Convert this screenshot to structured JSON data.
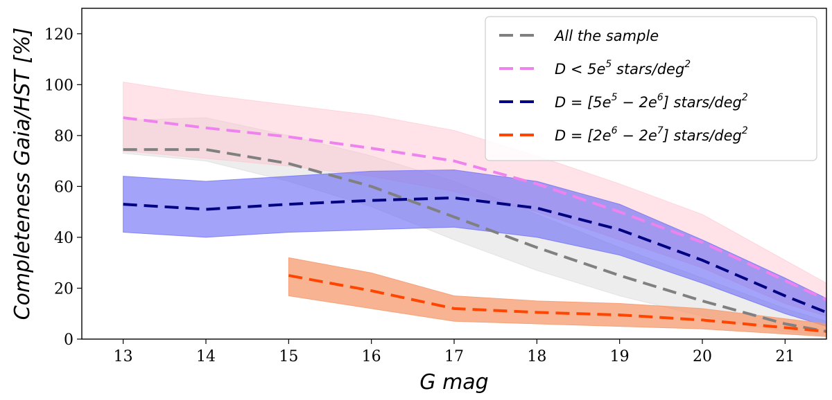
{
  "chart_data": {
    "type": "line",
    "title": "",
    "xlabel": "G mag",
    "ylabel": "Completeness Gaia/HST [%]",
    "xlim": [
      12.5,
      21.5
    ],
    "ylim": [
      0,
      130
    ],
    "xticks": [
      13,
      14,
      15,
      16,
      17,
      18,
      19,
      20,
      21
    ],
    "xtick_labels": [
      "13",
      "14",
      "15",
      "16",
      "17",
      "18",
      "19",
      "20",
      "21"
    ],
    "yticks": [
      0,
      20,
      40,
      60,
      80,
      100,
      120
    ],
    "ytick_labels": [
      "0",
      "20",
      "40",
      "60",
      "80",
      "100",
      "120"
    ],
    "legend_position": "top-right",
    "series": [
      {
        "name": "All the sample",
        "legend_parts": [
          {
            "text": "All the sample"
          }
        ],
        "color": "#808080",
        "band_color": "#d3d3d3",
        "band_opacity": 0.4,
        "x": [
          13,
          14,
          15,
          16,
          17,
          18,
          19,
          20,
          21,
          21.5
        ],
        "values": [
          74.5,
          74.5,
          69,
          60,
          48,
          36,
          25,
          15,
          6,
          3
        ],
        "lower": [
          73,
          70,
          62,
          52,
          39,
          27,
          17,
          9,
          3,
          1.5
        ],
        "upper": [
          86,
          87,
          80,
          72,
          62,
          49,
          36,
          24,
          12,
          7
        ]
      },
      {
        "name": "D < 5e5 stars/deg2",
        "legend_parts": [
          {
            "text": "D < 5e"
          },
          {
            "text": "5",
            "sup": true
          },
          {
            "text": " stars/deg"
          },
          {
            "text": "2",
            "sup": true
          }
        ],
        "color": "#ee82ee",
        "band_color": "#ffc0cb",
        "band_opacity": 0.45,
        "x": [
          13,
          14,
          15,
          16,
          17,
          18,
          19,
          20,
          21,
          21.5
        ],
        "values": [
          87,
          83,
          79.5,
          75,
          70,
          61,
          50,
          38,
          23,
          15.5
        ],
        "lower": [
          74,
          71,
          68,
          64,
          58,
          50,
          39,
          28,
          14,
          9
        ],
        "upper": [
          101,
          96,
          92,
          88,
          82,
          72,
          61,
          49,
          31,
          22
        ]
      },
      {
        "name": "D = [5e5 - 2e6] stars/deg2",
        "legend_parts": [
          {
            "text": "D = [5e"
          },
          {
            "text": "5",
            "sup": true
          },
          {
            "text": " − 2e"
          },
          {
            "text": "6",
            "sup": true
          },
          {
            "text": "] stars/deg"
          },
          {
            "text": "2",
            "sup": true
          }
        ],
        "color": "#000080",
        "band_color": "#6b6bf5",
        "band_opacity": 0.62,
        "x": [
          13,
          14,
          15,
          16,
          17,
          18,
          19,
          20,
          21,
          21.5
        ],
        "values": [
          53,
          51,
          53,
          54.5,
          55.5,
          51.5,
          43,
          31,
          17,
          10.5
        ],
        "lower": [
          42,
          40,
          42,
          43,
          44,
          40,
          33,
          22,
          10,
          5
        ],
        "upper": [
          64,
          62,
          64,
          66,
          66.5,
          62,
          53,
          39,
          24,
          16
        ]
      },
      {
        "name": "D = [2e6 - 2e7] stars/deg2",
        "legend_parts": [
          {
            "text": "D = [2e"
          },
          {
            "text": "6",
            "sup": true
          },
          {
            "text": " − 2e"
          },
          {
            "text": "7",
            "sup": true
          },
          {
            "text": "] stars/deg"
          },
          {
            "text": "2",
            "sup": true
          }
        ],
        "color": "#ff4500",
        "band_color": "#f59a6e",
        "band_opacity": 0.75,
        "x": [
          15,
          16,
          17,
          18,
          19,
          20,
          21,
          21.5
        ],
        "values": [
          25,
          19,
          12,
          10.5,
          9.5,
          7.5,
          4.5,
          3
        ],
        "lower": [
          17,
          12,
          7,
          6,
          5,
          4,
          2,
          1
        ],
        "upper": [
          32,
          26,
          17,
          15,
          14,
          12,
          8,
          6
        ]
      }
    ]
  }
}
